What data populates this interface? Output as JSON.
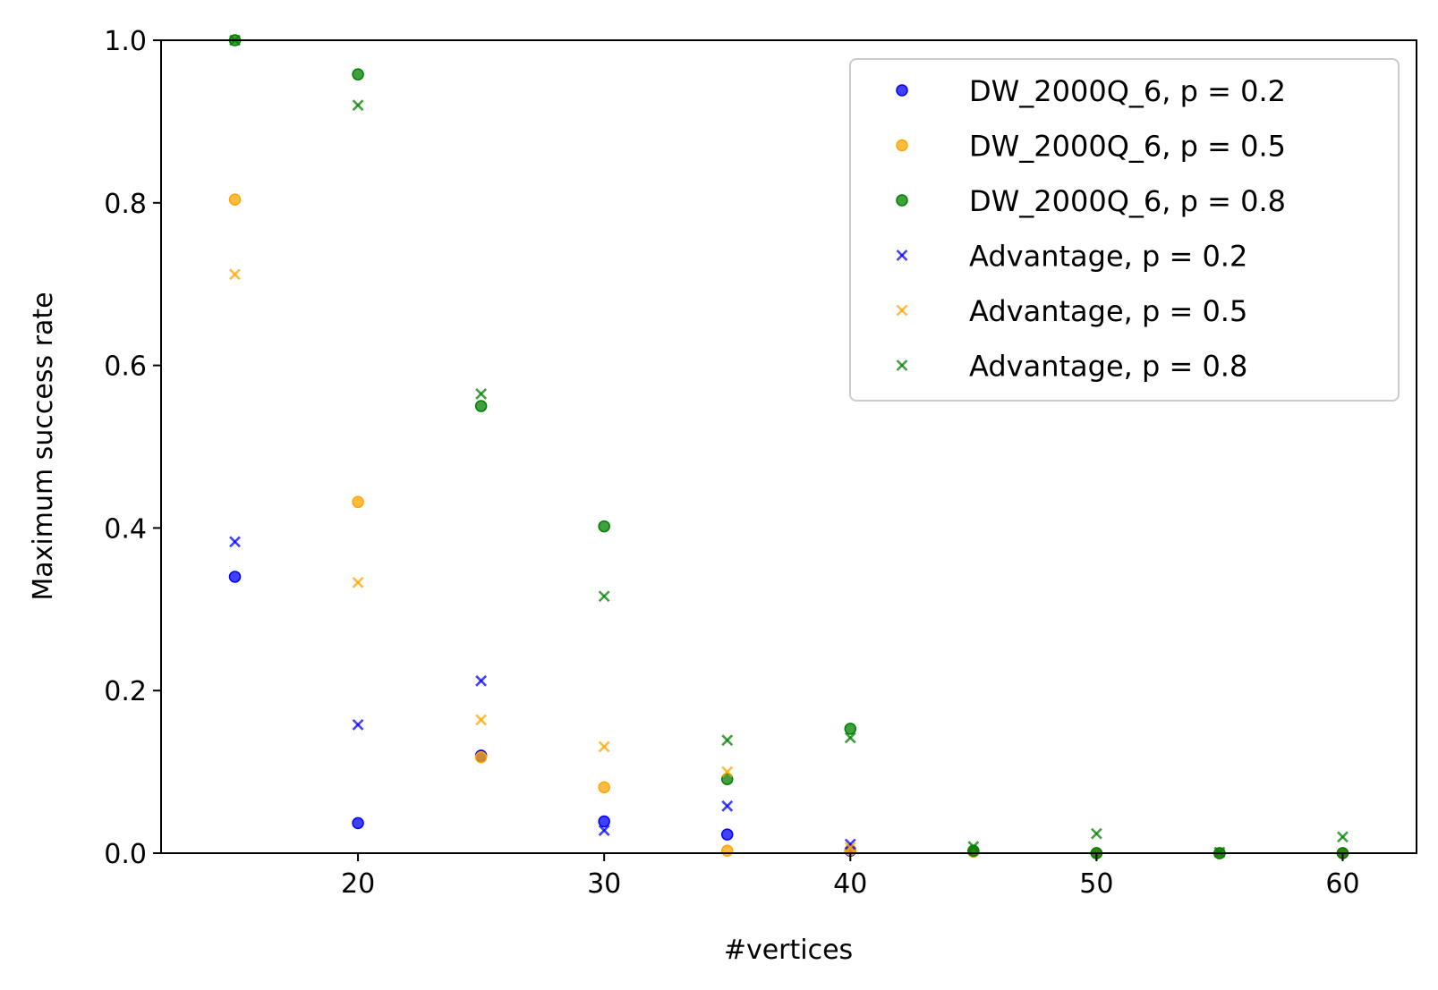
{
  "chart_data": {
    "type": "scatter",
    "title": "",
    "xlabel": "#vertices",
    "ylabel": "Maximum success rate",
    "xlim": [
      12,
      63
    ],
    "ylim": [
      0.0,
      1.0
    ],
    "xticks": [
      20,
      30,
      40,
      50,
      60
    ],
    "xtick_labels": [
      "20",
      "30",
      "40",
      "50",
      "60"
    ],
    "yticks": [
      0.0,
      0.2,
      0.4,
      0.6,
      0.8,
      1.0
    ],
    "ytick_labels": [
      "0.0",
      "0.2",
      "0.4",
      "0.6",
      "0.8",
      "1.0"
    ],
    "grid": false,
    "legend_position": "top-right",
    "series": [
      {
        "name": "DW_2000Q_6, p = 0.2",
        "marker": "circle",
        "color": "#0000ff",
        "x": [
          15,
          20,
          25,
          30,
          35,
          40,
          45,
          50,
          55,
          60
        ],
        "y": [
          0.34,
          0.037,
          0.12,
          0.039,
          0.023,
          0.003,
          0.002,
          0.0,
          0.0,
          0.0
        ]
      },
      {
        "name": "DW_2000Q_6, p = 0.5",
        "marker": "circle",
        "color": "#ffa500",
        "x": [
          15,
          20,
          25,
          30,
          35,
          40,
          45,
          50,
          55,
          60
        ],
        "y": [
          0.804,
          0.432,
          0.118,
          0.081,
          0.003,
          0.004,
          0.002,
          0.0,
          0.0,
          0.0
        ]
      },
      {
        "name": "DW_2000Q_6, p = 0.8",
        "marker": "circle",
        "color": "#008000",
        "x": [
          15,
          20,
          25,
          30,
          35,
          40,
          45,
          50,
          55,
          60
        ],
        "y": [
          1.0,
          0.958,
          0.55,
          0.402,
          0.091,
          0.153,
          0.003,
          0.0,
          0.0,
          0.0
        ]
      },
      {
        "name": "Advantage, p = 0.2",
        "marker": "x",
        "color": "#0000ff",
        "x": [
          15,
          20,
          25,
          30,
          35,
          40
        ],
        "y": [
          0.383,
          0.158,
          0.212,
          0.028,
          0.058,
          0.011
        ]
      },
      {
        "name": "Advantage, p = 0.5",
        "marker": "x",
        "color": "#ffa500",
        "x": [
          15,
          20,
          25,
          30,
          35,
          40
        ],
        "y": [
          0.712,
          0.333,
          0.164,
          0.131,
          0.1,
          0.007
        ]
      },
      {
        "name": "Advantage, p = 0.8",
        "marker": "x",
        "color": "#008000",
        "x": [
          15,
          20,
          25,
          30,
          35,
          40,
          45,
          50,
          55,
          60
        ],
        "y": [
          1.0,
          0.92,
          0.565,
          0.316,
          0.139,
          0.142,
          0.008,
          0.024,
          0.001,
          0.02
        ]
      }
    ]
  }
}
